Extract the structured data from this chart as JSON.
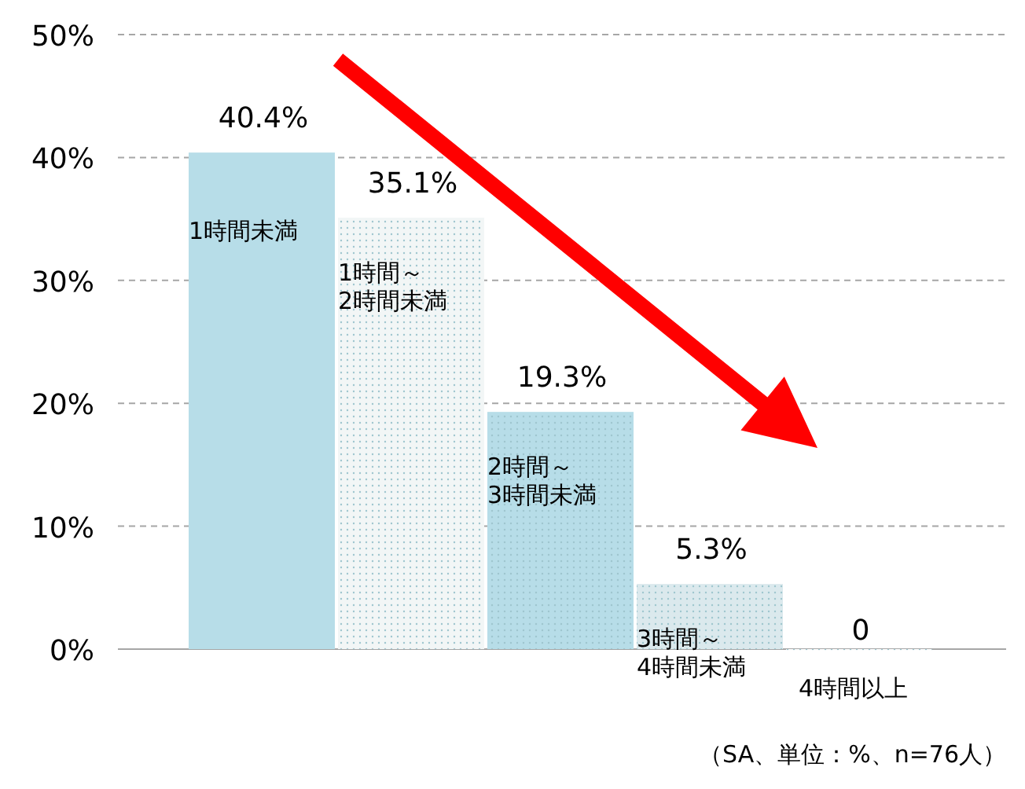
{
  "chart_data": {
    "type": "bar",
    "categories": [
      "1時間未満",
      "1時間～2時間未満",
      "2時間～3時間未満",
      "3時間～4時間未満",
      "4時間以上"
    ],
    "values": [
      40.4,
      35.1,
      19.3,
      5.3,
      0
    ],
    "colors": [
      "#b7dde8",
      "#f2f6f6",
      "#b7dde8",
      "#dbe9ed",
      "#ffffff"
    ],
    "value_labels": [
      "40.4%",
      "35.1%",
      "19.3%",
      "5.3%",
      "0"
    ],
    "ylim": [
      0,
      50
    ],
    "yticks": [
      {
        "value": 0,
        "label": "0%"
      },
      {
        "value": 10,
        "label": "10%"
      },
      {
        "value": 20,
        "label": "20%"
      },
      {
        "value": 30,
        "label": "30%"
      },
      {
        "value": 40,
        "label": "40%"
      },
      {
        "value": 50,
        "label": "50%"
      }
    ],
    "grid": "y",
    "annotations": [
      "（SA、単位：%、n=76人）"
    ]
  }
}
